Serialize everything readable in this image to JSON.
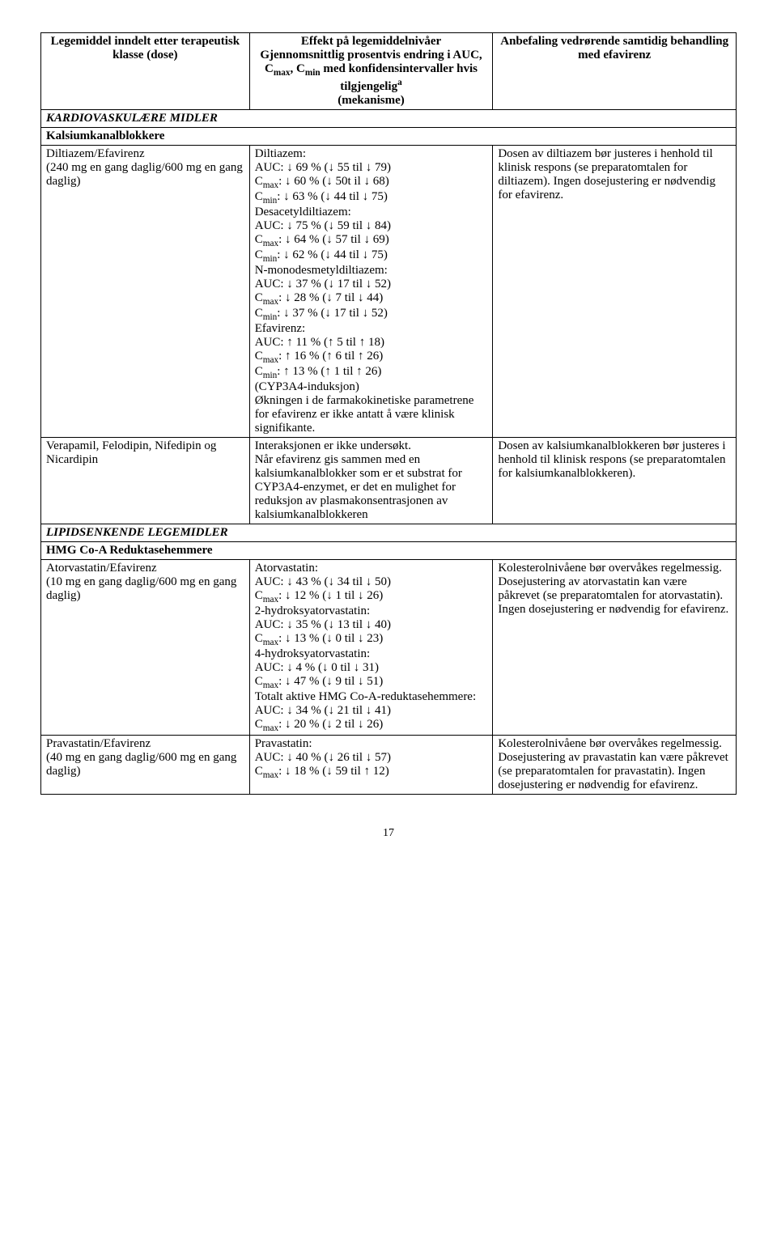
{
  "header": {
    "col1": "Legemiddel inndelt etter terapeutisk klasse (dose)",
    "col2_line1": "Effekt på legemiddelnivåer",
    "col2_line2": "Gjennomsnittlig prosentvis endring i AUC, C",
    "col2_line2_sub1": "max",
    "col2_line2_mid": ", C",
    "col2_line2_sub2": "min",
    "col2_line2_end": " med konfidensintervaller hvis tilgjengelig",
    "col2_sup": "a",
    "col2_line3": "(mekanisme)",
    "col3": "Anbefaling vedrørende samtidig behandling med efavirenz"
  },
  "section1": "KARDIOVASKULÆRE MIDLER",
  "sub1": "Kalsiumkanalblokkere",
  "row1": {
    "c1_line1": "Diltiazem/Efavirenz",
    "c1_line2": "(240 mg en gang daglig/600 mg en gang daglig)",
    "c2": "Diltiazem:\nAUC: ↓ 69 % (↓ 55 til ↓ 79)\nCmax: ↓ 60 % (↓ 50t il ↓ 68)\nCmin: ↓ 63 % (↓ 44 til ↓ 75)\nDesacetyldiltiazem:\nAUC: ↓ 75 % (↓ 59 til ↓ 84)\nCmax: ↓ 64 % (↓ 57 til ↓ 69)\nCmin: ↓ 62 % (↓ 44 til ↓ 75)\nN-monodesmetyldiltiazem:\nAUC: ↓ 37 % (↓ 17 til ↓ 52)\nCmax: ↓ 28 % (↓ 7 til ↓ 44)\nCmin: ↓ 37 % (↓ 17 til ↓ 52)\nEfavirenz:\nAUC: ↑ 11 % (↑ 5 til ↑ 18)\nCmax: ↑ 16 % (↑ 6 til ↑ 26)\nCmin: ↑ 13 % (↑ 1 til ↑ 26)\n(CYP3A4-induksjon)\nØkningen i de farmakokinetiske parametrene for efavirenz er ikke antatt å være klinisk signifikante.",
    "c3": "Dosen av diltiazem bør justeres i henhold til klinisk respons (se preparatomtalen for diltiazem). Ingen dosejustering er nødvendig for efavirenz."
  },
  "row2": {
    "c1": "Verapamil, Felodipin, Nifedipin og Nicardipin",
    "c2": "Interaksjonen er ikke undersøkt.\nNår efavirenz gis sammen med en kalsiumkanalblokker som er et substrat for CYP3A4-enzymet, er det en mulighet for reduksjon av plasmakonsentrasjonen av kalsiumkanalblokkeren",
    "c3": "Dosen av kalsiumkanalblokkeren bør justeres i henhold til klinisk respons (se preparatomtalen for kalsiumkanalblokkeren)."
  },
  "section2": "LIPIDSENKENDE LEGEMIDLER",
  "sub2": "HMG Co-A Reduktasehemmere",
  "row3": {
    "c1_line1": "Atorvastatin/Efavirenz",
    "c1_line2": "(10 mg en gang daglig/600 mg en gang daglig)",
    "c2": "Atorvastatin:\nAUC: ↓ 43 % (↓ 34 til ↓ 50)\nCmax: ↓ 12 % (↓ 1 til ↓ 26)\n2-hydroksyatorvastatin:\nAUC: ↓ 35 % (↓ 13 til ↓ 40)\nCmax: ↓ 13 % (↓ 0 til ↓ 23)\n4-hydroksyatorvastatin:\nAUC: ↓ 4 % (↓ 0 til ↓ 31)\nCmax: ↓ 47 % (↓ 9 til ↓ 51)\nTotalt aktive HMG Co-A-reduktasehemmere:\nAUC: ↓ 34 % (↓ 21 til ↓ 41)\nCmax: ↓ 20 % (↓ 2 til ↓ 26)",
    "c3": "Kolesterolnivåene bør overvåkes regelmessig. Dosejustering av atorvastatin kan være påkrevet (se preparatomtalen for atorvastatin). Ingen dosejustering er nødvendig for efavirenz."
  },
  "row4": {
    "c1_line1": "Pravastatin/Efavirenz",
    "c1_line2": "(40 mg en gang daglig/600 mg en gang daglig)",
    "c2": "Pravastatin:\nAUC: ↓ 40 % (↓ 26 til ↓ 57)\nCmax: ↓ 18 % (↓ 59 til ↑ 12)",
    "c3": "Kolesterolnivåene bør overvåkes regelmessig. Dosejustering av pravastatin kan være påkrevet (se preparatomtalen for pravastatin). Ingen dosejustering er nødvendig for efavirenz."
  },
  "page_number": "17"
}
